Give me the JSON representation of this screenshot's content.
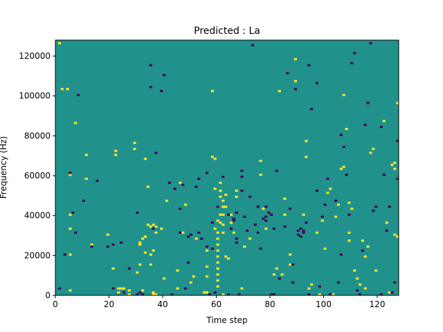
{
  "chart_data": {
    "type": "heatmap",
    "title": "Predicted : La",
    "xlabel": "Time step",
    "ylabel": "Frequency (Hz)",
    "xlim": [
      0,
      128
    ],
    "ylim": [
      0,
      128000
    ],
    "x_ticks": [
      {
        "value": 0,
        "label": "0"
      },
      {
        "value": 20,
        "label": "20"
      },
      {
        "value": 40,
        "label": "40"
      },
      {
        "value": 60,
        "label": "60"
      },
      {
        "value": 80,
        "label": "80"
      },
      {
        "value": 100,
        "label": "100"
      },
      {
        "value": 120,
        "label": "120"
      }
    ],
    "y_ticks": [
      {
        "value": 0,
        "label": "0"
      },
      {
        "value": 20000,
        "label": "20000"
      },
      {
        "value": 40000,
        "label": "40000"
      },
      {
        "value": 60000,
        "label": "60000"
      },
      {
        "value": 80000,
        "label": "80000"
      },
      {
        "value": 100000,
        "label": "100000"
      },
      {
        "value": 120000,
        "label": "120000"
      }
    ],
    "rows": 128,
    "cols": 128,
    "colormap": {
      "background": "#21918c",
      "high": "#fde725",
      "low": "#440154"
    },
    "high_cells": [
      [
        1,
        126
      ],
      [
        5,
        40
      ],
      [
        5,
        33
      ],
      [
        5,
        20
      ],
      [
        5,
        2
      ],
      [
        4,
        103
      ],
      [
        2,
        103
      ],
      [
        5,
        60
      ],
      [
        7,
        86
      ],
      [
        11,
        70
      ],
      [
        11,
        58
      ],
      [
        13,
        25
      ],
      [
        19,
        30
      ],
      [
        21,
        13
      ],
      [
        21,
        3
      ],
      [
        22,
        72
      ],
      [
        22,
        70
      ],
      [
        23,
        3
      ],
      [
        23,
        1
      ],
      [
        24,
        3
      ],
      [
        25,
        1
      ],
      [
        25,
        3
      ],
      [
        27,
        0
      ],
      [
        27,
        2
      ],
      [
        29,
        73
      ],
      [
        29,
        76
      ],
      [
        30,
        11
      ],
      [
        31,
        15
      ],
      [
        31,
        25
      ],
      [
        31,
        26
      ],
      [
        32,
        2
      ],
      [
        32,
        28
      ],
      [
        33,
        21
      ],
      [
        33,
        68
      ],
      [
        33,
        29
      ],
      [
        34,
        35
      ],
      [
        34,
        54
      ],
      [
        35,
        34
      ],
      [
        35,
        20
      ],
      [
        35,
        15
      ],
      [
        36,
        35
      ],
      [
        36,
        0
      ],
      [
        36,
        1
      ],
      [
        36,
        22
      ],
      [
        37,
        34
      ],
      [
        37,
        0
      ],
      [
        37,
        31
      ],
      [
        39,
        33
      ],
      [
        40,
        8
      ],
      [
        41,
        47
      ],
      [
        43,
        0
      ],
      [
        45,
        12
      ],
      [
        45,
        3
      ],
      [
        46,
        56
      ],
      [
        47,
        31
      ],
      [
        48,
        45
      ],
      [
        50,
        6
      ],
      [
        51,
        9
      ],
      [
        52,
        28
      ],
      [
        55,
        1
      ],
      [
        56,
        1
      ],
      [
        56,
        14
      ],
      [
        56,
        22
      ],
      [
        56,
        9
      ],
      [
        58,
        102
      ],
      [
        58,
        69
      ],
      [
        59,
        68
      ],
      [
        59,
        53
      ],
      [
        59,
        33
      ],
      [
        60,
        44
      ],
      [
        60,
        31
      ],
      [
        60,
        28
      ],
      [
        60,
        25
      ],
      [
        61,
        49
      ],
      [
        61,
        40
      ],
      [
        61,
        36
      ],
      [
        62,
        0
      ],
      [
        62,
        31
      ],
      [
        62,
        35
      ],
      [
        63,
        19
      ],
      [
        63,
        50
      ],
      [
        63,
        44
      ],
      [
        64,
        18
      ],
      [
        64,
        0
      ],
      [
        65,
        36
      ],
      [
        65,
        40
      ],
      [
        66,
        31
      ],
      [
        67,
        49
      ],
      [
        67,
        52
      ],
      [
        69,
        3
      ],
      [
        70,
        24
      ],
      [
        72,
        28
      ],
      [
        76,
        67
      ],
      [
        76,
        60
      ],
      [
        77,
        43
      ],
      [
        78,
        33
      ],
      [
        81,
        10
      ],
      [
        82,
        13
      ],
      [
        83,
        102
      ],
      [
        84,
        10
      ],
      [
        85,
        48
      ],
      [
        85,
        40
      ],
      [
        87,
        20
      ],
      [
        87,
        15
      ],
      [
        89,
        118
      ],
      [
        89,
        107
      ],
      [
        92,
        40
      ],
      [
        93,
        69
      ],
      [
        93,
        77
      ],
      [
        94,
        3
      ],
      [
        95,
        5
      ],
      [
        97,
        31
      ],
      [
        98,
        0
      ],
      [
        99,
        37
      ],
      [
        100,
        23
      ],
      [
        101,
        51
      ],
      [
        102,
        53
      ],
      [
        103,
        0
      ],
      [
        104,
        39
      ],
      [
        105,
        45
      ],
      [
        106,
        63
      ],
      [
        107,
        100
      ],
      [
        107,
        64
      ],
      [
        108,
        83
      ],
      [
        109,
        27
      ],
      [
        109,
        46
      ],
      [
        109,
        31
      ],
      [
        110,
        43
      ],
      [
        111,
        12
      ],
      [
        112,
        8
      ],
      [
        113,
        5
      ],
      [
        114,
        27
      ],
      [
        115,
        19
      ],
      [
        115,
        3
      ],
      [
        116,
        24
      ],
      [
        117,
        71
      ],
      [
        118,
        73
      ],
      [
        119,
        12
      ],
      [
        122,
        87
      ],
      [
        123,
        36
      ],
      [
        124,
        1
      ],
      [
        125,
        65
      ],
      [
        126,
        63
      ],
      [
        126,
        30
      ],
      [
        126,
        66
      ],
      [
        127,
        96
      ],
      [
        127,
        29
      ],
      [
        60,
        4
      ],
      [
        60,
        7
      ],
      [
        60,
        10
      ],
      [
        60,
        13
      ],
      [
        60,
        16
      ],
      [
        60,
        19
      ],
      [
        60,
        22
      ],
      [
        62,
        40
      ],
      [
        62,
        44
      ],
      [
        62,
        47
      ],
      [
        61,
        52
      ],
      [
        60,
        37
      ],
      [
        61,
        56
      ]
    ],
    "low_cells": [
      [
        1,
        3
      ],
      [
        3,
        20
      ],
      [
        5,
        61
      ],
      [
        6,
        41
      ],
      [
        7,
        31
      ],
      [
        8,
        100
      ],
      [
        10,
        47
      ],
      [
        13,
        24
      ],
      [
        15,
        57
      ],
      [
        19,
        24
      ],
      [
        21,
        25
      ],
      [
        21,
        3
      ],
      [
        24,
        26
      ],
      [
        25,
        1
      ],
      [
        27,
        13
      ],
      [
        30,
        41
      ],
      [
        30,
        0
      ],
      [
        31,
        1
      ],
      [
        32,
        0
      ],
      [
        35,
        104
      ],
      [
        35,
        115
      ],
      [
        36,
        33
      ],
      [
        37,
        71
      ],
      [
        39,
        102
      ],
      [
        40,
        110
      ],
      [
        42,
        56
      ],
      [
        43,
        0
      ],
      [
        44,
        53
      ],
      [
        46,
        31
      ],
      [
        46,
        43
      ],
      [
        47,
        55
      ],
      [
        48,
        3
      ],
      [
        49,
        16
      ],
      [
        49,
        29
      ],
      [
        50,
        30
      ],
      [
        52,
        54
      ],
      [
        53,
        58
      ],
      [
        53,
        31
      ],
      [
        54,
        28
      ],
      [
        56,
        61
      ],
      [
        56,
        24
      ],
      [
        58,
        23
      ],
      [
        58,
        36
      ],
      [
        59,
        1
      ],
      [
        60,
        44
      ],
      [
        62,
        59
      ],
      [
        64,
        0
      ],
      [
        65,
        33
      ],
      [
        66,
        37
      ],
      [
        67,
        28
      ],
      [
        67,
        41
      ],
      [
        68,
        0
      ],
      [
        69,
        62
      ],
      [
        69,
        52
      ],
      [
        69,
        59
      ],
      [
        70,
        39
      ],
      [
        71,
        32
      ],
      [
        72,
        49
      ],
      [
        73,
        125
      ],
      [
        74,
        35
      ],
      [
        75,
        44
      ],
      [
        75,
        31
      ],
      [
        76,
        23
      ],
      [
        78,
        37
      ],
      [
        78,
        44
      ],
      [
        79,
        41
      ],
      [
        80,
        0
      ],
      [
        80,
        40
      ],
      [
        81,
        0
      ],
      [
        81,
        33
      ],
      [
        82,
        62
      ],
      [
        83,
        8
      ],
      [
        85,
        34
      ],
      [
        86,
        111
      ],
      [
        87,
        43
      ],
      [
        88,
        6
      ],
      [
        88,
        15
      ],
      [
        89,
        103
      ],
      [
        90,
        32
      ],
      [
        91,
        29
      ],
      [
        92,
        32
      ],
      [
        93,
        36
      ],
      [
        94,
        0
      ],
      [
        94,
        115
      ],
      [
        95,
        93
      ],
      [
        97,
        106
      ],
      [
        97,
        52
      ],
      [
        98,
        4
      ],
      [
        99,
        39
      ],
      [
        100,
        45
      ],
      [
        101,
        58
      ],
      [
        102,
        0
      ],
      [
        104,
        47
      ],
      [
        105,
        6
      ],
      [
        106,
        80
      ],
      [
        106,
        20
      ],
      [
        107,
        74
      ],
      [
        108,
        60
      ],
      [
        109,
        40
      ],
      [
        110,
        116
      ],
      [
        111,
        121
      ],
      [
        112,
        2
      ],
      [
        113,
        0
      ],
      [
        114,
        22
      ],
      [
        115,
        85
      ],
      [
        116,
        96
      ],
      [
        117,
        126
      ],
      [
        118,
        42
      ],
      [
        119,
        44
      ],
      [
        121,
        0
      ],
      [
        121,
        84
      ],
      [
        122,
        60
      ],
      [
        123,
        32
      ],
      [
        124,
        44
      ],
      [
        125,
        1
      ],
      [
        126,
        6
      ],
      [
        127,
        77
      ],
      [
        127,
        58
      ],
      [
        57,
        0
      ],
      [
        64,
        40
      ],
      [
        66,
        38
      ],
      [
        67,
        26
      ],
      [
        77,
        38
      ],
      [
        78,
        39
      ],
      [
        90,
        30
      ],
      [
        91,
        33
      ],
      [
        92,
        31
      ]
    ]
  }
}
